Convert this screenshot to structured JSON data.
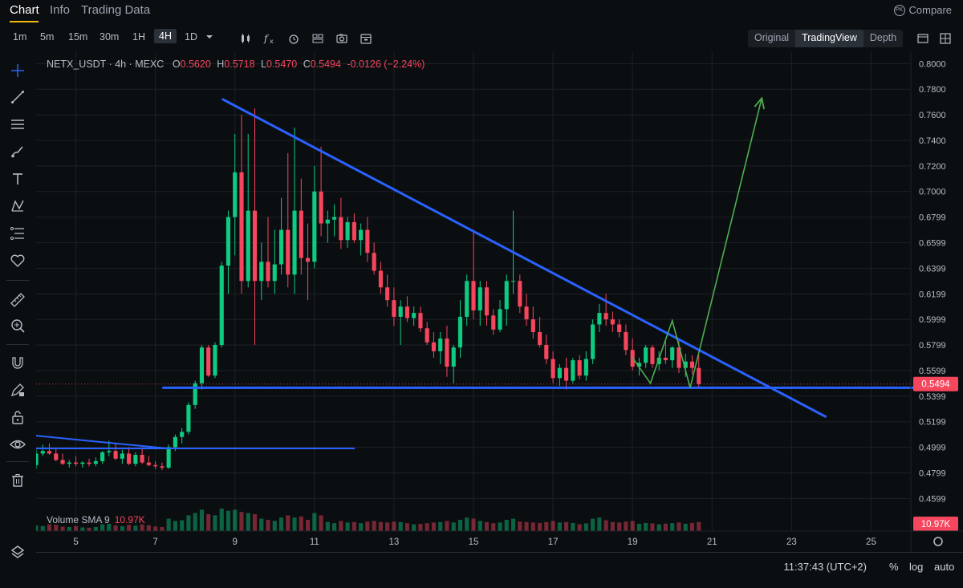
{
  "tabs": [
    {
      "label": "Chart",
      "active": true
    },
    {
      "label": "Info",
      "active": false
    },
    {
      "label": "Trading Data",
      "active": false
    }
  ],
  "compare": {
    "badge": "PK",
    "label": "Compare"
  },
  "timeframes": [
    "1m",
    "5m",
    "15m",
    "30m",
    "1H",
    "4H",
    "1D"
  ],
  "active_timeframe": "4H",
  "toolbar_icons": [
    "candle-type-icon",
    "indicators-icon",
    "alert-icon",
    "templates-icon",
    "screenshot-icon",
    "calendar-icon"
  ],
  "view_switch": [
    "Original",
    "TradingView",
    "Depth"
  ],
  "active_view": "TradingView",
  "sidebar_icons": [
    "crosshair-icon",
    "trend-line-icon",
    "horizontal-lines-icon",
    "brush-icon",
    "text-icon",
    "pattern-icon",
    "fib-icon",
    "heart-icon",
    "ruler-icon",
    "zoom-in-icon",
    "magnet-icon",
    "lock-drawing-icon",
    "lock-icon",
    "eye-icon",
    "trash-icon",
    "layers-icon"
  ],
  "legend": {
    "symbol": "NETX_USDT · 4h · MEXC",
    "o_label": "O",
    "o": "0.5620",
    "h_label": "H",
    "h": "0.5718",
    "l_label": "L",
    "l": "0.5470",
    "c_label": "C",
    "c": "0.5494",
    "change": "-0.0126 (−2.24%)"
  },
  "volume_legend": {
    "label": "Volume SMA 9",
    "value": "10.97K"
  },
  "colors": {
    "up": "#0ecb81",
    "down": "#f6465d",
    "trendline": "#2962ff",
    "projection": "#4caf50",
    "background": "#0b0e11",
    "grid": "#1c2127"
  },
  "bottom": {
    "clock": "11:37:43 (UTC+2)",
    "percent": "%",
    "log": "log",
    "auto": "auto"
  },
  "chart_data": {
    "type": "candlestick",
    "symbol": "NETX_USDT",
    "interval": "4h",
    "exchange": "MEXC",
    "y_ticks": [
      "0.8000",
      "0.7800",
      "0.7600",
      "0.7400",
      "0.7200",
      "0.7000",
      "0.6799",
      "0.6599",
      "0.6399",
      "0.6199",
      "0.5999",
      "0.5799",
      "0.5599",
      "0.5399",
      "0.5199",
      "0.4999",
      "0.4799",
      "0.4599"
    ],
    "ylim": [
      0.4526,
      0.809
    ],
    "x_ticks": [
      "5",
      "7",
      "9",
      "11",
      "13",
      "15",
      "17",
      "19",
      "21",
      "23",
      "25"
    ],
    "xlim": [
      4.0,
      26.0
    ],
    "last_price": "0.5494",
    "volume_last_label": "10.97K",
    "candles": [
      [
        4.0,
        0.486,
        0.498,
        0.483,
        0.495,
        0.25
      ],
      [
        4.167,
        0.495,
        0.502,
        0.493,
        0.497,
        0.22
      ],
      [
        4.333,
        0.497,
        0.503,
        0.494,
        0.495,
        0.3
      ],
      [
        4.5,
        0.495,
        0.499,
        0.489,
        0.49,
        0.28
      ],
      [
        4.667,
        0.49,
        0.495,
        0.486,
        0.487,
        0.2
      ],
      [
        4.833,
        0.487,
        0.49,
        0.484,
        0.488,
        0.18
      ],
      [
        5.0,
        0.488,
        0.493,
        0.485,
        0.487,
        0.22
      ],
      [
        5.167,
        0.487,
        0.489,
        0.484,
        0.488,
        0.16
      ],
      [
        5.333,
        0.488,
        0.491,
        0.485,
        0.487,
        0.15
      ],
      [
        5.5,
        0.487,
        0.492,
        0.485,
        0.489,
        0.18
      ],
      [
        5.667,
        0.489,
        0.497,
        0.487,
        0.496,
        0.3
      ],
      [
        5.833,
        0.496,
        0.505,
        0.493,
        0.497,
        0.32
      ],
      [
        6.0,
        0.497,
        0.503,
        0.49,
        0.491,
        0.25
      ],
      [
        6.167,
        0.491,
        0.498,
        0.487,
        0.495,
        0.22
      ],
      [
        6.333,
        0.495,
        0.5,
        0.486,
        0.487,
        0.28
      ],
      [
        6.5,
        0.487,
        0.496,
        0.485,
        0.494,
        0.24
      ],
      [
        6.667,
        0.494,
        0.5,
        0.487,
        0.488,
        0.3
      ],
      [
        6.833,
        0.488,
        0.493,
        0.485,
        0.486,
        0.26
      ],
      [
        7.0,
        0.486,
        0.489,
        0.483,
        0.485,
        0.2
      ],
      [
        7.167,
        0.485,
        0.488,
        0.482,
        0.484,
        0.18
      ],
      [
        7.333,
        0.484,
        0.502,
        0.483,
        0.5,
        0.55
      ],
      [
        7.5,
        0.5,
        0.51,
        0.497,
        0.508,
        0.45
      ],
      [
        7.667,
        0.508,
        0.515,
        0.503,
        0.512,
        0.48
      ],
      [
        7.833,
        0.512,
        0.535,
        0.51,
        0.533,
        0.7
      ],
      [
        8.0,
        0.533,
        0.552,
        0.53,
        0.55,
        0.8
      ],
      [
        8.167,
        0.55,
        0.58,
        0.545,
        0.578,
        0.95
      ],
      [
        8.333,
        0.578,
        0.58,
        0.555,
        0.556,
        0.75
      ],
      [
        8.5,
        0.556,
        0.582,
        0.554,
        0.58,
        0.7
      ],
      [
        8.667,
        0.58,
        0.645,
        0.578,
        0.642,
        1.0
      ],
      [
        8.833,
        0.642,
        0.685,
        0.62,
        0.68,
        0.9
      ],
      [
        9.0,
        0.68,
        0.745,
        0.65,
        0.715,
        0.95
      ],
      [
        9.167,
        0.715,
        0.76,
        0.62,
        0.63,
        0.85
      ],
      [
        9.333,
        0.63,
        0.745,
        0.625,
        0.685,
        0.8
      ],
      [
        9.5,
        0.685,
        0.765,
        0.58,
        0.63,
        0.75
      ],
      [
        9.667,
        0.63,
        0.66,
        0.615,
        0.645,
        0.55
      ],
      [
        9.833,
        0.645,
        0.68,
        0.625,
        0.63,
        0.5
      ],
      [
        10.0,
        0.63,
        0.67,
        0.62,
        0.643,
        0.45
      ],
      [
        10.167,
        0.643,
        0.695,
        0.635,
        0.67,
        0.6
      ],
      [
        10.333,
        0.67,
        0.73,
        0.625,
        0.635,
        0.7
      ],
      [
        10.5,
        0.635,
        0.75,
        0.62,
        0.685,
        0.6
      ],
      [
        10.667,
        0.685,
        0.71,
        0.635,
        0.648,
        0.65
      ],
      [
        10.833,
        0.648,
        0.675,
        0.615,
        0.645,
        0.5
      ],
      [
        11.0,
        0.645,
        0.72,
        0.64,
        0.7,
        0.8
      ],
      [
        11.167,
        0.7,
        0.735,
        0.665,
        0.675,
        0.7
      ],
      [
        11.333,
        0.675,
        0.685,
        0.66,
        0.678,
        0.4
      ],
      [
        11.5,
        0.678,
        0.69,
        0.665,
        0.68,
        0.35
      ],
      [
        11.667,
        0.68,
        0.695,
        0.655,
        0.662,
        0.45
      ],
      [
        11.833,
        0.662,
        0.68,
        0.656,
        0.676,
        0.38
      ],
      [
        12.0,
        0.676,
        0.683,
        0.66,
        0.662,
        0.4
      ],
      [
        12.167,
        0.662,
        0.675,
        0.65,
        0.67,
        0.35
      ],
      [
        12.333,
        0.67,
        0.68,
        0.645,
        0.652,
        0.42
      ],
      [
        12.5,
        0.652,
        0.66,
        0.635,
        0.638,
        0.45
      ],
      [
        12.667,
        0.638,
        0.645,
        0.62,
        0.625,
        0.4
      ],
      [
        12.833,
        0.625,
        0.635,
        0.61,
        0.615,
        0.38
      ],
      [
        13.0,
        0.615,
        0.625,
        0.595,
        0.602,
        0.42
      ],
      [
        13.167,
        0.602,
        0.615,
        0.58,
        0.61,
        0.4
      ],
      [
        13.333,
        0.61,
        0.618,
        0.598,
        0.601,
        0.35
      ],
      [
        13.5,
        0.601,
        0.61,
        0.595,
        0.605,
        0.3
      ],
      [
        13.667,
        0.605,
        0.61,
        0.59,
        0.593,
        0.32
      ],
      [
        13.833,
        0.593,
        0.598,
        0.58,
        0.582,
        0.35
      ],
      [
        14.0,
        0.582,
        0.59,
        0.57,
        0.575,
        0.38
      ],
      [
        14.167,
        0.575,
        0.59,
        0.565,
        0.585,
        0.4
      ],
      [
        14.333,
        0.585,
        0.595,
        0.555,
        0.563,
        0.45
      ],
      [
        14.5,
        0.563,
        0.58,
        0.55,
        0.578,
        0.38
      ],
      [
        14.667,
        0.578,
        0.615,
        0.57,
        0.602,
        0.5
      ],
      [
        14.833,
        0.602,
        0.635,
        0.595,
        0.63,
        0.6
      ],
      [
        15.0,
        0.63,
        0.67,
        0.6,
        0.607,
        0.55
      ],
      [
        15.167,
        0.607,
        0.63,
        0.595,
        0.625,
        0.45
      ],
      [
        15.333,
        0.625,
        0.63,
        0.595,
        0.603,
        0.4
      ],
      [
        15.5,
        0.603,
        0.608,
        0.588,
        0.592,
        0.35
      ],
      [
        15.667,
        0.592,
        0.615,
        0.59,
        0.608,
        0.38
      ],
      [
        15.833,
        0.608,
        0.635,
        0.595,
        0.63,
        0.5
      ],
      [
        16.0,
        0.63,
        0.685,
        0.62,
        0.63,
        0.55
      ],
      [
        16.167,
        0.63,
        0.635,
        0.605,
        0.61,
        0.42
      ],
      [
        16.333,
        0.61,
        0.62,
        0.595,
        0.6,
        0.4
      ],
      [
        16.5,
        0.6,
        0.61,
        0.585,
        0.59,
        0.38
      ],
      [
        16.667,
        0.59,
        0.602,
        0.578,
        0.58,
        0.36
      ],
      [
        16.833,
        0.58,
        0.588,
        0.565,
        0.569,
        0.4
      ],
      [
        17.0,
        0.569,
        0.575,
        0.55,
        0.554,
        0.45
      ],
      [
        17.167,
        0.554,
        0.565,
        0.548,
        0.562,
        0.38
      ],
      [
        17.333,
        0.562,
        0.57,
        0.545,
        0.552,
        0.4
      ],
      [
        17.5,
        0.552,
        0.57,
        0.55,
        0.568,
        0.36
      ],
      [
        17.667,
        0.568,
        0.572,
        0.553,
        0.556,
        0.3
      ],
      [
        17.833,
        0.556,
        0.575,
        0.552,
        0.569,
        0.34
      ],
      [
        18.0,
        0.569,
        0.6,
        0.565,
        0.596,
        0.55
      ],
      [
        18.167,
        0.596,
        0.612,
        0.59,
        0.605,
        0.6
      ],
      [
        18.333,
        0.605,
        0.62,
        0.595,
        0.6,
        0.48
      ],
      [
        18.5,
        0.6,
        0.606,
        0.59,
        0.596,
        0.4
      ],
      [
        18.667,
        0.596,
        0.6,
        0.586,
        0.59,
        0.38
      ],
      [
        18.833,
        0.59,
        0.596,
        0.572,
        0.576,
        0.42
      ],
      [
        19.0,
        0.576,
        0.585,
        0.56,
        0.563,
        0.45
      ],
      [
        19.167,
        0.563,
        0.57,
        0.556,
        0.566,
        0.32
      ],
      [
        19.333,
        0.566,
        0.58,
        0.562,
        0.578,
        0.36
      ],
      [
        19.5,
        0.578,
        0.58,
        0.562,
        0.565,
        0.34
      ],
      [
        19.667,
        0.565,
        0.575,
        0.56,
        0.57,
        0.3
      ],
      [
        19.833,
        0.57,
        0.585,
        0.565,
        0.568,
        0.33
      ],
      [
        20.0,
        0.568,
        0.579,
        0.562,
        0.578,
        0.35
      ],
      [
        20.167,
        0.578,
        0.583,
        0.558,
        0.562,
        0.38
      ],
      [
        20.333,
        0.562,
        0.573,
        0.555,
        0.567,
        0.32
      ],
      [
        20.5,
        0.567,
        0.572,
        0.557,
        0.562,
        0.36
      ],
      [
        20.667,
        0.562,
        0.5718,
        0.547,
        0.5494,
        0.4
      ]
    ],
    "drawings": {
      "descending_trendline": [
        [
          8.7,
          0.772
        ],
        [
          23.85,
          0.524
        ]
      ],
      "support_line": [
        [
          7.2,
          0.5465
        ],
        [
          26.2,
          0.5465
        ]
      ],
      "old_trendline": [
        [
          4.0,
          0.509
        ],
        [
          7.3,
          0.499
        ]
      ],
      "old_support": [
        [
          4.0,
          0.499
        ],
        [
          12.0,
          0.499
        ]
      ],
      "projection": [
        [
          19.0,
          0.57
        ],
        [
          19.45,
          0.55
        ],
        [
          20.0,
          0.599
        ],
        [
          20.45,
          0.5465
        ],
        [
          22.25,
          0.773
        ]
      ]
    }
  }
}
